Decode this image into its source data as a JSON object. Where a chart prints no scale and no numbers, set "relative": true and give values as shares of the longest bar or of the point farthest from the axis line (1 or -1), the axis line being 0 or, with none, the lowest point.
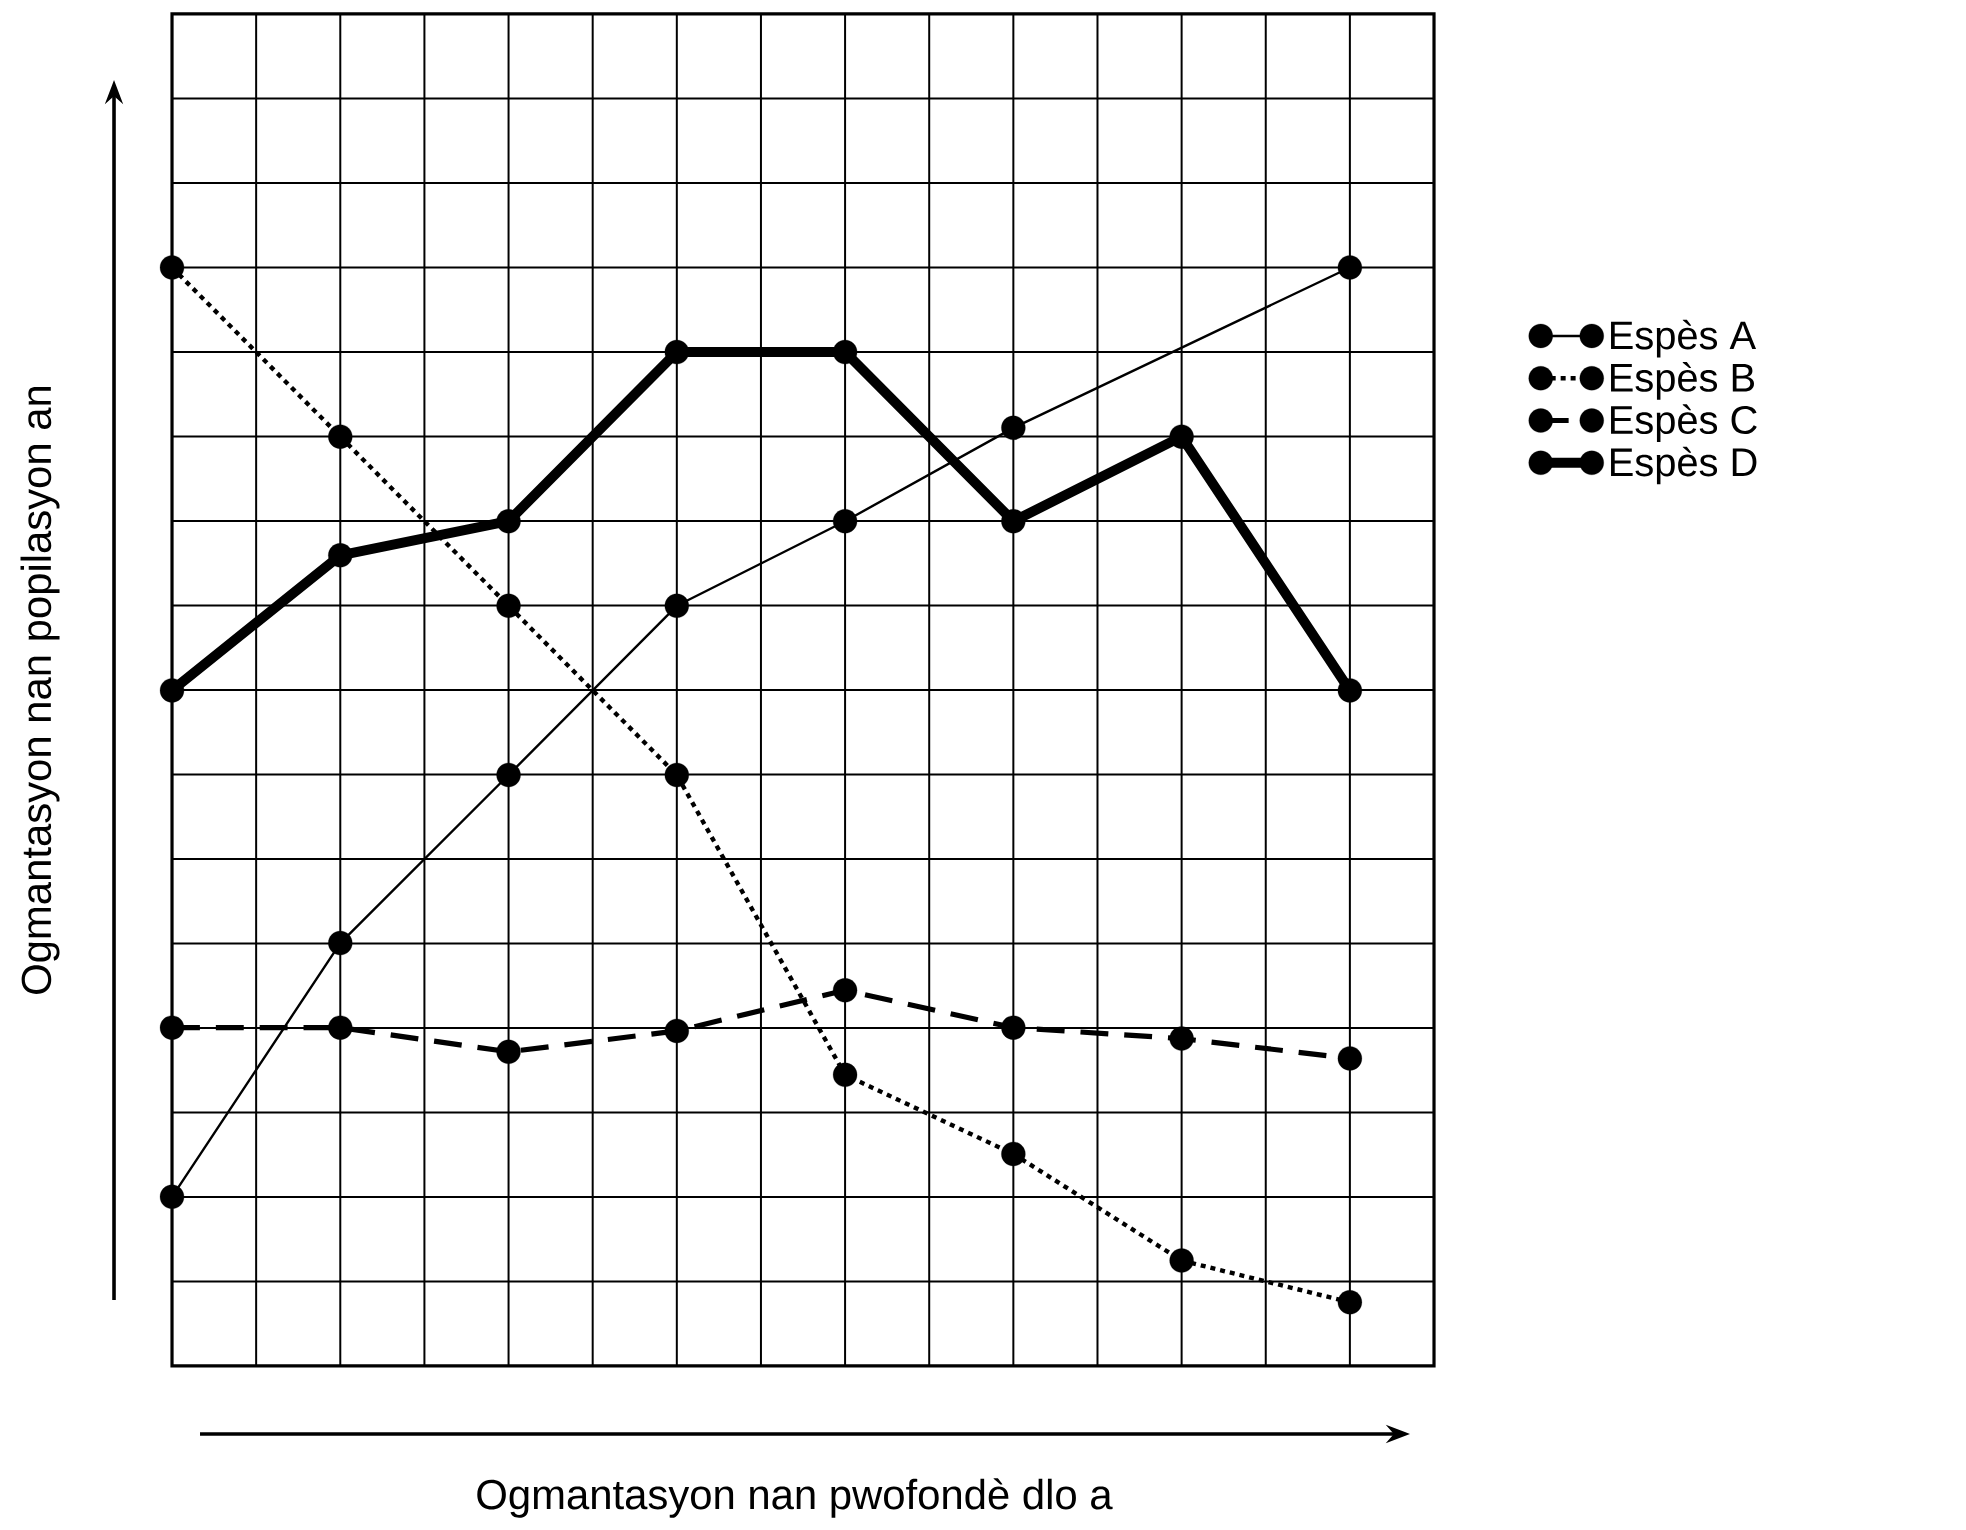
{
  "chart_data": {
    "type": "line",
    "relative": true,
    "xlabel": "Ogmantasyon nan pwofondè dlo a",
    "ylabel": "Ogmantasyon nan popilasyon an",
    "categories": [
      null,
      null,
      null,
      null,
      null,
      null,
      null,
      null
    ],
    "grid": true,
    "legend": "right",
    "marker": "circle",
    "series": [
      {
        "name": "Espès A",
        "color": "#000000",
        "line_style": "solid",
        "values": [
          0.154,
          0.385,
          0.538,
          0.692,
          0.769,
          0.854,
          null,
          1
        ]
      },
      {
        "name": "Espès B",
        "color": "#000000",
        "line_style": "dotted",
        "values": [
          1,
          0.846,
          0.692,
          0.538,
          0.265,
          0.193,
          0.096,
          0.058
        ]
      },
      {
        "name": "Espès C",
        "color": "#000000",
        "line_style": "dashed",
        "values": [
          0.308,
          0.308,
          0.286,
          0.305,
          0.342,
          0.308,
          0.298,
          0.28
        ]
      },
      {
        "name": "Espès D",
        "color": "#000000",
        "line_style": "solid",
        "values": [
          0.615,
          0.738,
          0.769,
          0.923,
          0.923,
          0.769,
          0.846,
          0.615
        ]
      }
    ]
  }
}
